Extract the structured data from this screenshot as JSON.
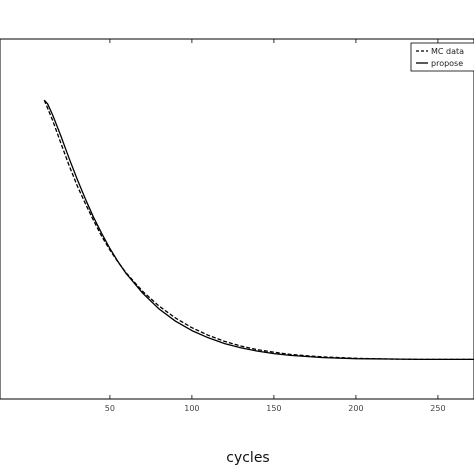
{
  "chart_data": {
    "type": "line",
    "title": "",
    "xlabel": "cycles",
    "ylabel": "",
    "xlim": [
      -17,
      272
    ],
    "ylim": [
      0,
      1
    ],
    "grid": false,
    "legend": {
      "placement": "top-right",
      "entries": [
        "MC data",
        "propose"
      ]
    },
    "x_ticks": [
      50,
      100,
      150,
      200,
      250
    ],
    "x_tick_labels": [
      "50",
      "100",
      "150",
      "200",
      "250"
    ],
    "series": [
      {
        "name": "MC data",
        "style": "dashed",
        "x": [
          10,
          15,
          20,
          25,
          30,
          35,
          40,
          45,
          50,
          55,
          60,
          70,
          80,
          90,
          100,
          110,
          120,
          130,
          140,
          150,
          160,
          170,
          180,
          200,
          220,
          240,
          260,
          272
        ],
        "y": [
          0.83,
          0.775,
          0.712,
          0.65,
          0.593,
          0.543,
          0.496,
          0.452,
          0.414,
          0.38,
          0.35,
          0.299,
          0.258,
          0.225,
          0.198,
          0.177,
          0.16,
          0.147,
          0.137,
          0.13,
          0.124,
          0.12,
          0.117,
          0.113,
          0.111,
          0.11,
          0.11,
          0.11
        ]
      },
      {
        "name": "propose",
        "style": "solid",
        "x": [
          10,
          12,
          15,
          20,
          25,
          30,
          35,
          40,
          45,
          50,
          55,
          60,
          70,
          80,
          90,
          100,
          110,
          120,
          130,
          140,
          150,
          160,
          170,
          180,
          200,
          220,
          240,
          260,
          272
        ],
        "y": [
          0.83,
          0.82,
          0.79,
          0.732,
          0.67,
          0.611,
          0.556,
          0.505,
          0.46,
          0.418,
          0.381,
          0.348,
          0.294,
          0.25,
          0.216,
          0.19,
          0.17,
          0.154,
          0.142,
          0.133,
          0.126,
          0.121,
          0.118,
          0.115,
          0.112,
          0.111,
          0.11,
          0.11,
          0.11
        ]
      }
    ]
  }
}
